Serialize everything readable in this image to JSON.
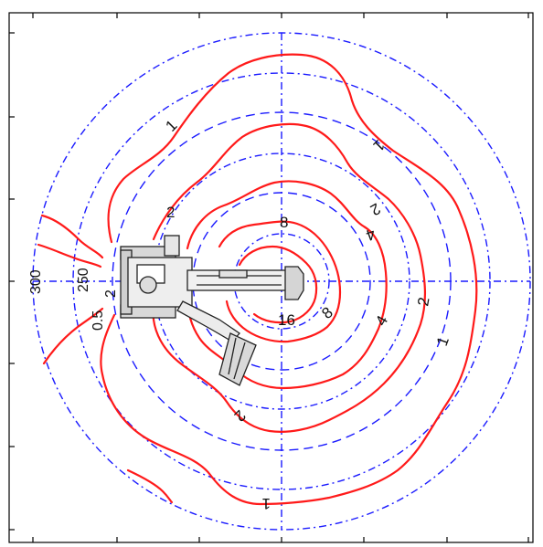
{
  "diagram": {
    "ring_labels": [
      {
        "id": "r300",
        "text": "300"
      },
      {
        "id": "r250",
        "text": "250"
      }
    ],
    "center_labels": [
      {
        "id": "c05",
        "text": "0.5"
      },
      {
        "id": "c2",
        "text": "2"
      }
    ],
    "contour_labels": [
      {
        "id": "l1a",
        "text": "1"
      },
      {
        "id": "l1b",
        "text": "1"
      },
      {
        "id": "l1c",
        "text": "1"
      },
      {
        "id": "l1d",
        "text": "1"
      },
      {
        "id": "l2a",
        "text": "2"
      },
      {
        "id": "l2b",
        "text": "2"
      },
      {
        "id": "l2c",
        "text": "2"
      },
      {
        "id": "l2d",
        "text": "2"
      },
      {
        "id": "l4a",
        "text": "4"
      },
      {
        "id": "l4b",
        "text": "4"
      },
      {
        "id": "l8a",
        "text": "8"
      },
      {
        "id": "l8b",
        "text": "8"
      },
      {
        "id": "l16",
        "text": "16"
      }
    ],
    "colors": {
      "grid": "#1a1aff",
      "contour": "#ff1a1a",
      "frame": "#000000"
    }
  }
}
